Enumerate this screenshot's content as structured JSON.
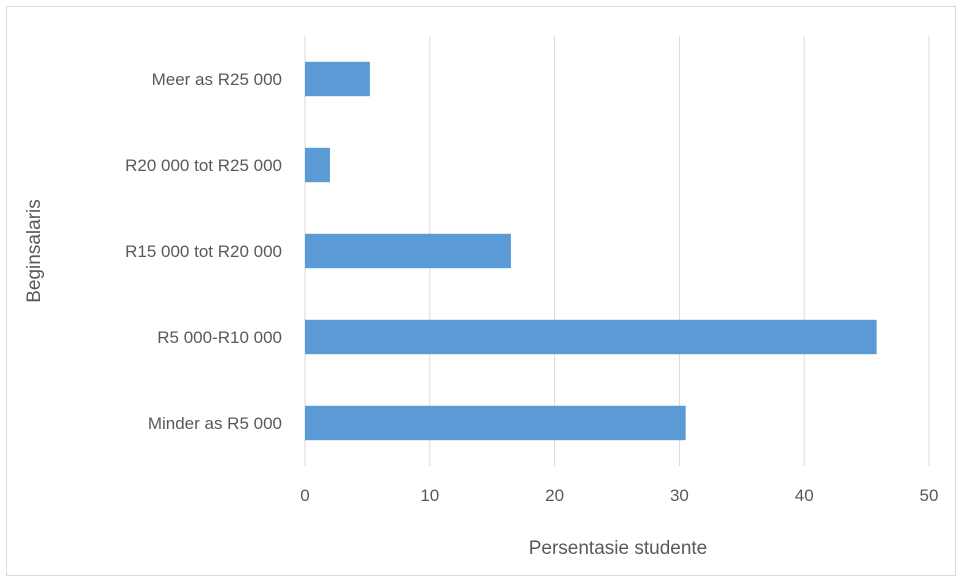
{
  "chart_data": {
    "type": "bar",
    "orientation": "horizontal",
    "categories": [
      "Minder as R5 000",
      "R5 000-R10 000",
      "R15 000 tot R20 000",
      "R20 000 tot R25 000",
      "Meer as R25 000"
    ],
    "values": [
      30.5,
      45.8,
      16.5,
      2,
      5.2
    ],
    "title": "",
    "xlabel": "Persentasie studente",
    "ylabel": "Beginsalaris",
    "xlim": [
      0,
      50
    ],
    "xticks": [
      0,
      10,
      20,
      30,
      40,
      50
    ],
    "grid": true,
    "bar_color": "#5b9bd5",
    "grid_color": "#d9d9d9",
    "text_color": "#595959"
  }
}
